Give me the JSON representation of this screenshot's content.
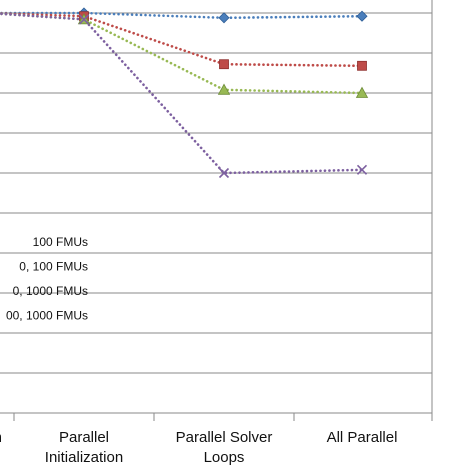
{
  "chart_data": {
    "type": "line",
    "categories": [
      [
        "n"
      ],
      [
        "Parallel",
        "Initialization"
      ],
      [
        "Parallel Solver",
        "Loops"
      ],
      [
        "All Parallel"
      ]
    ],
    "series": [
      {
        "name": "100 FMUs",
        "color": "#4a7ebb",
        "marker": "diamond",
        "values": [
          1.0,
          1.0,
          0.97,
          0.98
        ]
      },
      {
        "name": "0, 100 FMUs",
        "color": "#be4b48",
        "marker": "square",
        "values": [
          1.0,
          0.98,
          0.68,
          0.67
        ]
      },
      {
        "name": "0, 1000 FMUs",
        "color": "#98b954",
        "marker": "triangle",
        "values": [
          1.0,
          0.96,
          0.52,
          0.5
        ]
      },
      {
        "name": "00, 1000 FMUs",
        "color": "#7d60a0",
        "marker": "x",
        "values": [
          1.0,
          0.96,
          0.0,
          0.02
        ]
      }
    ],
    "ylim": [
      0,
      1
    ],
    "grid": true,
    "legend_position": "left"
  }
}
